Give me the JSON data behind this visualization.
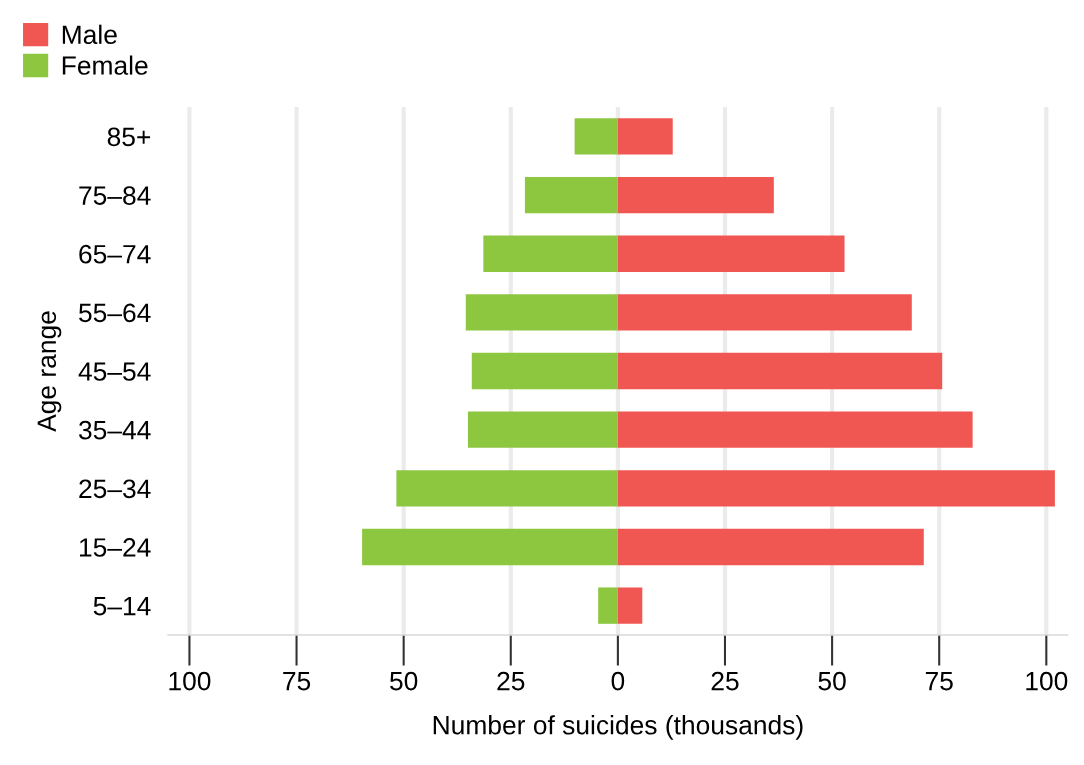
{
  "chart_data": {
    "type": "bar",
    "orientation": "horizontal",
    "stacked": true,
    "xlabel": "Number of suicides (thousands)",
    "ylabel": "Age range",
    "categories": [
      "85+",
      "75–84",
      "65–74",
      "55–64",
      "45–54",
      "35–44",
      "25–34",
      "15–24",
      "5–14"
    ],
    "series": [
      {
        "name": "Male",
        "color": "#f05752",
        "values": [
          12.8,
          36.4,
          52.9,
          68.6,
          75.7,
          82.8,
          102,
          71.4,
          5.7
        ]
      },
      {
        "name": "Female",
        "color": "#8dc63f",
        "values": [
          -10.1,
          -21.7,
          -31.4,
          -35.5,
          -34.1,
          -35.0,
          -51.7,
          -59.7,
          -4.6
        ]
      }
    ],
    "xlim": [
      -105,
      105
    ],
    "xticks": [
      {
        "value": -100,
        "label": "100"
      },
      {
        "value": -75,
        "label": "75"
      },
      {
        "value": -50,
        "label": "50"
      },
      {
        "value": -25,
        "label": "25"
      },
      0,
      25,
      50,
      75,
      100
    ],
    "grid": "x",
    "legend": "top left"
  }
}
